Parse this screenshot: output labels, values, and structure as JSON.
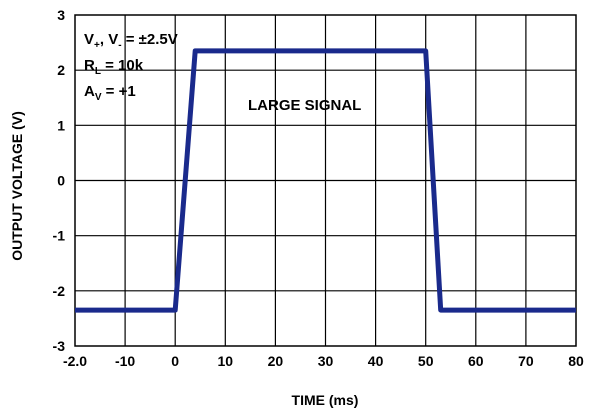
{
  "chart_data": {
    "type": "line",
    "xlabel": "TIME (ms)",
    "ylabel": "OUTPUT VOLTAGE (V)",
    "xlim": [
      -20,
      80
    ],
    "ylim": [
      -3,
      3
    ],
    "x_ticks": [
      "-2.0",
      "-10",
      "0",
      "10",
      "20",
      "30",
      "40",
      "50",
      "60",
      "70",
      "80"
    ],
    "y_ticks": [
      "3",
      "2",
      "1",
      "0",
      "-1",
      "-2",
      "-3"
    ],
    "grid": true,
    "annotations": {
      "supply_main": "V",
      "supply_sub1": "+",
      "supply_mid": ", V",
      "supply_sub2": "-",
      "supply_tail": " = ±2.5V",
      "rl_main": "R",
      "rl_sub": "L",
      "rl_tail": " = 10k",
      "av_main": "A",
      "av_sub": "V",
      "av_tail": " = +1",
      "signal_label": "LARGE SIGNAL"
    },
    "series": [
      {
        "color": "#1a2a8c",
        "x": [
          -20,
          0,
          4,
          50,
          53,
          80
        ],
        "y": [
          -2.35,
          -2.35,
          2.35,
          2.35,
          -2.35,
          -2.35
        ]
      }
    ]
  }
}
